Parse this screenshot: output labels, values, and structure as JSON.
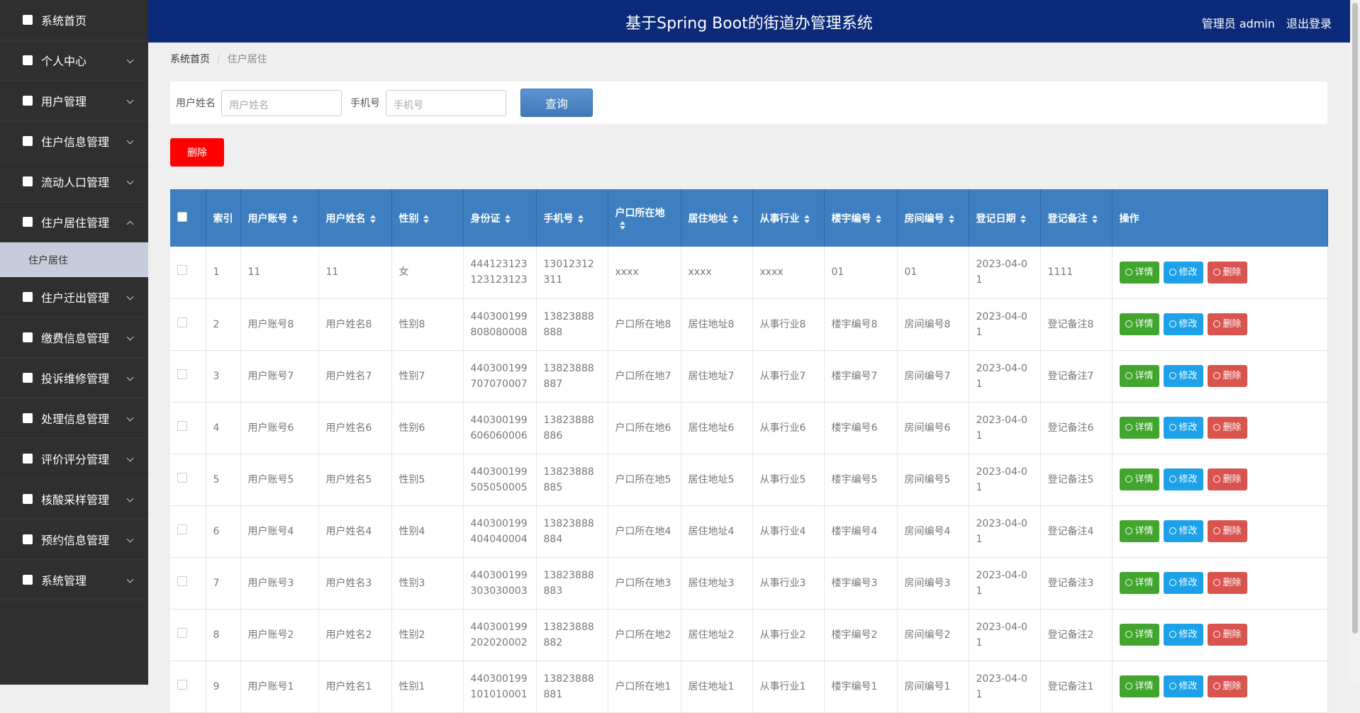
{
  "header": {
    "title": "基于Spring Boot的街道办管理系统",
    "user": "管理员 admin",
    "logout": "退出登录"
  },
  "sidebar": {
    "menu": [
      "系统首页",
      "个人中心",
      "用户管理",
      "住户信息管理",
      "流动人口管理",
      "住户居住管理",
      "住户迁出管理",
      "缴费信息管理",
      "投诉维修管理",
      "处理信息管理",
      "评价评分管理",
      "核酸采样管理",
      "预约信息管理",
      "系统管理"
    ],
    "submenu": [
      "住户居住"
    ]
  },
  "breadcrumb": [
    "系统首页",
    "住户居住"
  ],
  "search": {
    "fields": [
      {
        "label": "用户姓名",
        "placeholder": "用户姓名"
      },
      {
        "label": "手机号",
        "placeholder": "手机号"
      }
    ],
    "button": "查询"
  },
  "delete_button": "删除",
  "table": {
    "columns": [
      "索引",
      "用户账号",
      "用户姓名",
      "性别",
      "身份证",
      "手机号",
      "户口所在地",
      "居住地址",
      "从事行业",
      "楼宇编号",
      "房间编号",
      "登记日期",
      "登记备注",
      "操作"
    ],
    "actions": [
      "详情",
      "修改",
      "删除"
    ],
    "rows": [
      [
        "1",
        "11",
        "11",
        "女",
        "444123123123123123",
        "13012312311",
        "xxxx",
        "xxxx",
        "xxxx",
        "01",
        "01",
        "2023-04-01",
        "1111"
      ],
      [
        "2",
        "用户账号8",
        "用户姓名8",
        "性别8",
        "440300199808080008",
        "13823888888",
        "户口所在地8",
        "居住地址8",
        "从事行业8",
        "楼宇编号8",
        "房间编号8",
        "2023-04-01",
        "登记备注8"
      ],
      [
        "3",
        "用户账号7",
        "用户姓名7",
        "性别7",
        "440300199707070007",
        "13823888887",
        "户口所在地7",
        "居住地址7",
        "从事行业7",
        "楼宇编号7",
        "房间编号7",
        "2023-04-01",
        "登记备注7"
      ],
      [
        "4",
        "用户账号6",
        "用户姓名6",
        "性别6",
        "440300199606060006",
        "13823888886",
        "户口所在地6",
        "居住地址6",
        "从事行业6",
        "楼宇编号6",
        "房间编号6",
        "2023-04-01",
        "登记备注6"
      ],
      [
        "5",
        "用户账号5",
        "用户姓名5",
        "性别5",
        "440300199505050005",
        "13823888885",
        "户口所在地5",
        "居住地址5",
        "从事行业5",
        "楼宇编号5",
        "房间编号5",
        "2023-04-01",
        "登记备注5"
      ],
      [
        "6",
        "用户账号4",
        "用户姓名4",
        "性别4",
        "440300199404040004",
        "13823888884",
        "户口所在地4",
        "居住地址4",
        "从事行业4",
        "楼宇编号4",
        "房间编号4",
        "2023-04-01",
        "登记备注4"
      ],
      [
        "7",
        "用户账号3",
        "用户姓名3",
        "性别3",
        "440300199303030003",
        "13823888883",
        "户口所在地3",
        "居住地址3",
        "从事行业3",
        "楼宇编号3",
        "房间编号3",
        "2023-04-01",
        "登记备注3"
      ],
      [
        "8",
        "用户账号2",
        "用户姓名2",
        "性别2",
        "440300199202020002",
        "13823888882",
        "户口所在地2",
        "居住地址2",
        "从事行业2",
        "楼宇编号2",
        "房间编号2",
        "2023-04-01",
        "登记备注2"
      ],
      [
        "9",
        "用户账号1",
        "用户姓名1",
        "性别1",
        "440300199101010001",
        "13823888881",
        "户口所在地1",
        "居住地址1",
        "从事行业1",
        "楼宇编号1",
        "房间编号1",
        "2023-04-01",
        "登记备注1"
      ]
    ]
  }
}
